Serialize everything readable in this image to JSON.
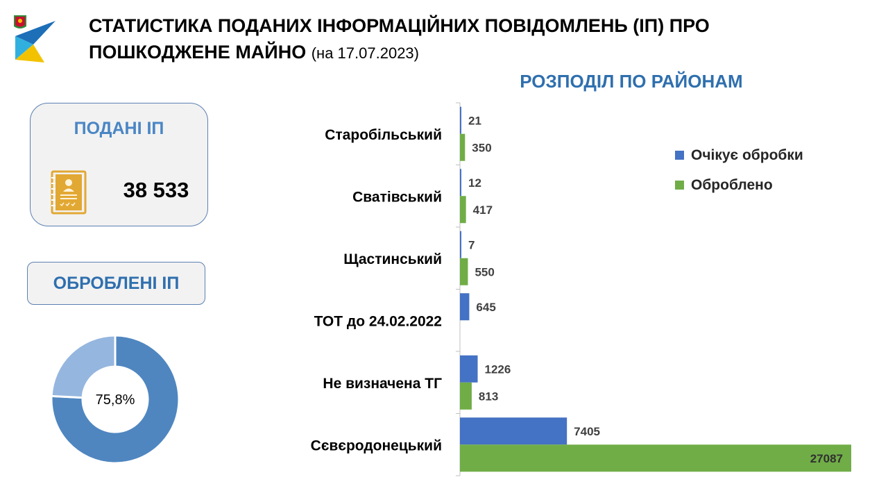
{
  "header": {
    "title_line1": "СТАТИСТИКА ПОДАНИХ ІНФОРМАЦІЙНИХ ПОВІДОМЛЕНЬ (ІП) ПРО",
    "title_line2": "ПОШКОДЖЕНЕ МАЙНО",
    "date": "(на 17.07.2023)"
  },
  "submitted_card": {
    "title": "ПОДАНІ ІП",
    "value": "38 533",
    "icon": "document-profile-icon"
  },
  "processed_card": {
    "title": "ОБРОБЛЕНІ ІП"
  },
  "colors": {
    "pending": "#4472c4",
    "processed": "#70ad47",
    "donut_main": "#4f86c0",
    "donut_rest": "#95b6df",
    "accent_title": "#2f6fae"
  },
  "chart_data": [
    {
      "type": "pie",
      "variant": "donut",
      "center_label": "75,8%",
      "values": [
        75.8,
        24.2
      ]
    },
    {
      "type": "bar",
      "orientation": "horizontal",
      "title": "РОЗПОДІЛ ПО РАЙОНАМ",
      "categories": [
        "Старобільський",
        "Сватівський",
        "Щастинський",
        "ТОТ до 24.02.2022",
        "Не визначена ТГ",
        "Сєвєродонецький"
      ],
      "series": [
        {
          "name": "Очікує обробки",
          "values": [
            21,
            12,
            7,
            645,
            1226,
            7405
          ]
        },
        {
          "name": "Оброблено",
          "values": [
            350,
            417,
            550,
            null,
            813,
            27087
          ]
        }
      ],
      "xlim": [
        0,
        27087
      ],
      "legend_position": "right",
      "grid": false
    }
  ]
}
